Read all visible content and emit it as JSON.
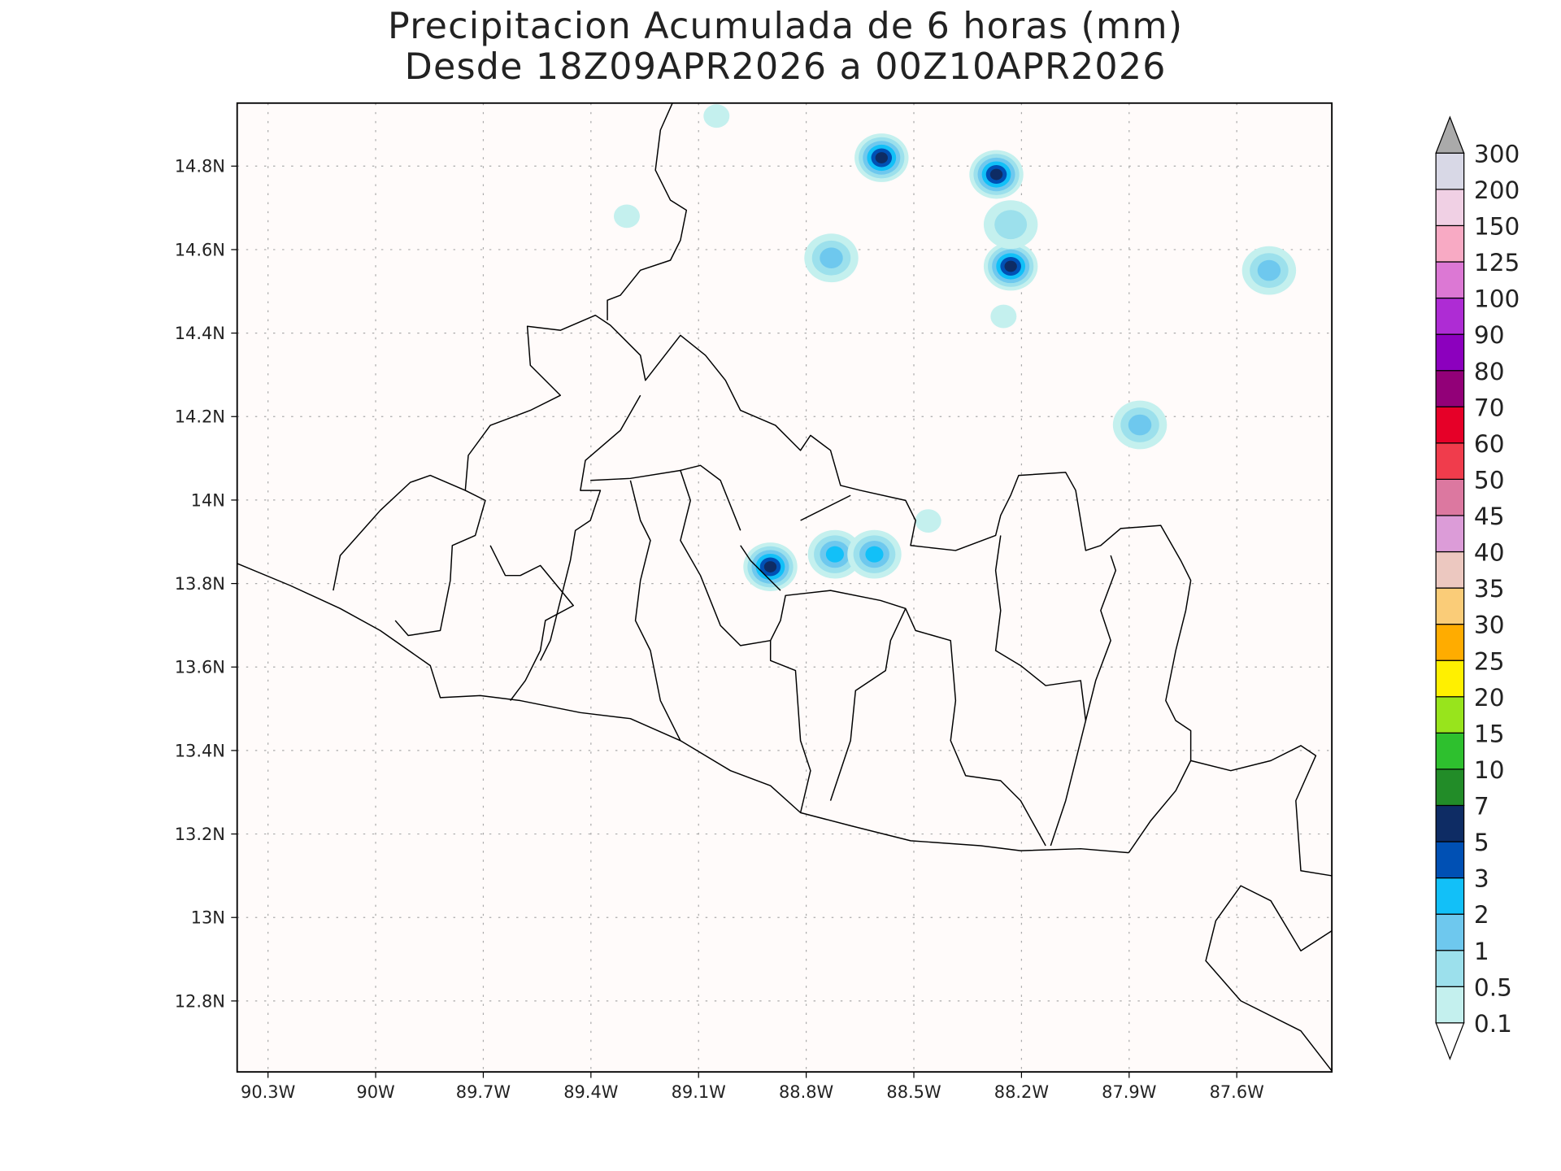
{
  "chart_data": {
    "type": "heatmap",
    "title": "Precipitacion Acumulada de 6 horas (mm)",
    "subtitle": "Desde 18Z09APR2026 a 00Z10APR2026",
    "xlim": [
      -90.386,
      -87.335
    ],
    "ylim": [
      12.63,
      14.951
    ],
    "x_ticks": [
      {
        "value": -90.3,
        "label": "90.3W"
      },
      {
        "value": -90.0,
        "label": "90W"
      },
      {
        "value": -89.7,
        "label": "89.7W"
      },
      {
        "value": -89.4,
        "label": "89.4W"
      },
      {
        "value": -89.1,
        "label": "89.1W"
      },
      {
        "value": -88.8,
        "label": "88.8W"
      },
      {
        "value": -88.5,
        "label": "88.5W"
      },
      {
        "value": -88.2,
        "label": "88.2W"
      },
      {
        "value": -87.9,
        "label": "87.9W"
      },
      {
        "value": -87.6,
        "label": "87.6W"
      }
    ],
    "y_ticks": [
      {
        "value": 14.8,
        "label": "14.8N"
      },
      {
        "value": 14.6,
        "label": "14.6N"
      },
      {
        "value": 14.4,
        "label": "14.4N"
      },
      {
        "value": 14.2,
        "label": "14.2N"
      },
      {
        "value": 14.0,
        "label": "14N"
      },
      {
        "value": 13.8,
        "label": "13.8N"
      },
      {
        "value": 13.6,
        "label": "13.6N"
      },
      {
        "value": 13.4,
        "label": "13.4N"
      },
      {
        "value": 13.2,
        "label": "13.2N"
      },
      {
        "value": 13.0,
        "label": "13N"
      },
      {
        "value": 12.8,
        "label": "12.8N"
      }
    ],
    "grid": true,
    "colorbar": {
      "levels": [
        "0.1",
        "0.5",
        "1",
        "2",
        "3",
        "5",
        "7",
        "10",
        "15",
        "20",
        "25",
        "30",
        "35",
        "40",
        "45",
        "50",
        "60",
        "70",
        "80",
        "90",
        "100",
        "125",
        "150",
        "200",
        "300"
      ],
      "colors": [
        "#c4f0ee",
        "#9ce0ec",
        "#6ec8ee",
        "#12c0f8",
        "#0050b4",
        "#0e2c64",
        "#228c28",
        "#2ec02e",
        "#98e41c",
        "#fff000",
        "#ffac00",
        "#facc78",
        "#ecc8c0",
        "#dc9cd8",
        "#dc78a0",
        "#f03c4c",
        "#e60028",
        "#920078",
        "#8c00be",
        "#ae2cd4",
        "#dc78d4",
        "#f8aac4",
        "#f0d0e4",
        "#d8d8e6"
      ],
      "over_color": "#aaaaaa",
      "under_color": "#ffffff",
      "placement": "right"
    },
    "background_color": "#fffbfa",
    "precipitation_cells": [
      {
        "lon": -88.59,
        "lat": 14.82,
        "peak_mm": 5
      },
      {
        "lon": -88.27,
        "lat": 14.78,
        "peak_mm": 5
      },
      {
        "lon": -88.73,
        "lat": 14.58,
        "peak_mm": 1
      },
      {
        "lon": -88.23,
        "lat": 14.56,
        "peak_mm": 5
      },
      {
        "lon": -88.23,
        "lat": 14.66,
        "peak_mm": 0.5
      },
      {
        "lon": -88.9,
        "lat": 13.84,
        "peak_mm": 5
      },
      {
        "lon": -88.72,
        "lat": 13.87,
        "peak_mm": 2
      },
      {
        "lon": -88.61,
        "lat": 13.87,
        "peak_mm": 2
      },
      {
        "lon": -87.87,
        "lat": 14.18,
        "peak_mm": 1
      },
      {
        "lon": -87.51,
        "lat": 14.55,
        "peak_mm": 1
      },
      {
        "lon": -89.3,
        "lat": 14.68,
        "peak_mm": 0.1
      },
      {
        "lon": -89.05,
        "lat": 14.92,
        "peak_mm": 0.1
      },
      {
        "lon": -88.46,
        "lat": 13.95,
        "peak_mm": 0.1
      },
      {
        "lon": -88.25,
        "lat": 14.44,
        "peak_mm": 0.1
      }
    ]
  }
}
